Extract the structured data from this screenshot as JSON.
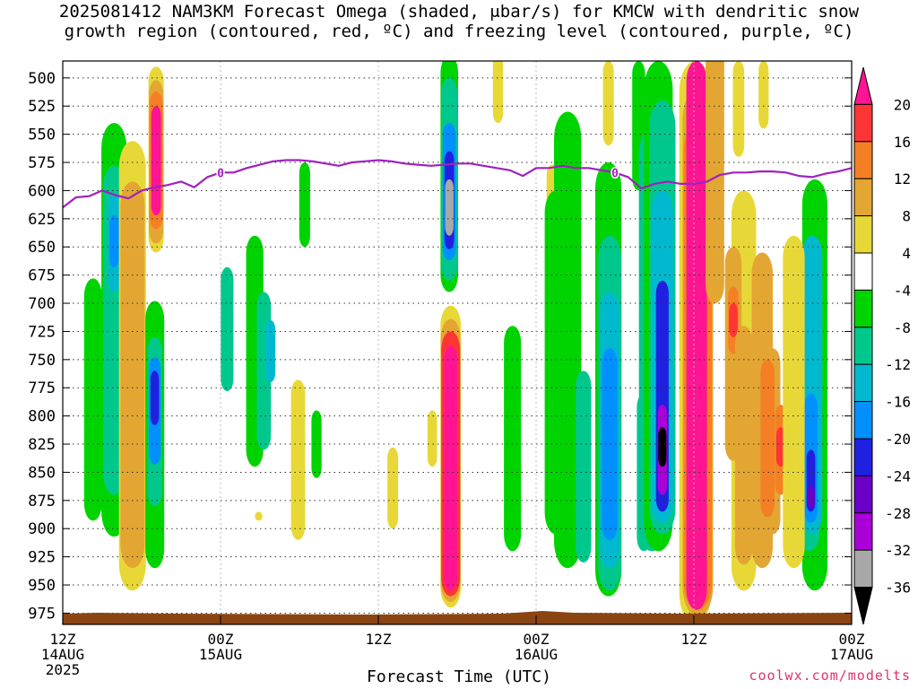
{
  "title_line1": "2025081412 NAM3KM Forecast Omega (shaded, μbar/s) for KMCW with dendritic snow",
  "title_line2": "growth region (contoured, red, ºC) and freezing level (contoured, purple, ºC)",
  "credit": "coolwx.com/modelts",
  "chart_data": {
    "type": "heatmap",
    "xlabel": "Forecast Time (UTC)",
    "ylabel": "",
    "x_ticks": [
      {
        "hour": 0,
        "l1": "12Z",
        "l2": "14AUG",
        "l3": "2025"
      },
      {
        "hour": 12,
        "l1": "00Z",
        "l2": "15AUG",
        "l3": ""
      },
      {
        "hour": 24,
        "l1": "12Z",
        "l2": "",
        "l3": ""
      },
      {
        "hour": 36,
        "l1": "00Z",
        "l2": "16AUG",
        "l3": ""
      },
      {
        "hour": 48,
        "l1": "12Z",
        "l2": "",
        "l3": ""
      },
      {
        "hour": 60,
        "l1": "00Z",
        "l2": "17AUG",
        "l3": ""
      }
    ],
    "xlim": [
      0,
      60
    ],
    "y_ticks": [
      500,
      525,
      550,
      575,
      600,
      625,
      650,
      675,
      700,
      725,
      750,
      775,
      800,
      825,
      850,
      875,
      900,
      925,
      950,
      975
    ],
    "ylim_hpa": [
      485,
      985
    ],
    "grid": true,
    "colorbar": {
      "labels": [
        "20",
        "16",
        "12",
        "8",
        "4",
        "-4",
        "-8",
        "-12",
        "-16",
        "-20",
        "-24",
        "-28",
        "-32",
        "-36"
      ],
      "bins": [
        {
          "range": ">20",
          "color": "#ff1493"
        },
        {
          "range": "16 to 20",
          "color": "#ff3535"
        },
        {
          "range": "12 to 16",
          "color": "#f57f24"
        },
        {
          "range": "8 to 12",
          "color": "#e3a632"
        },
        {
          "range": "4 to 8",
          "color": "#e8d837"
        },
        {
          "range": "-4 to 4",
          "color": "#ffffff"
        },
        {
          "range": "-8 to -4",
          "color": "#00d400"
        },
        {
          "range": "-12 to -8",
          "color": "#00c88c"
        },
        {
          "range": "-16 to -12",
          "color": "#00b9cf"
        },
        {
          "range": "-20 to -16",
          "color": "#0090ff"
        },
        {
          "range": "-24 to -20",
          "color": "#2020e0"
        },
        {
          "range": "-28 to -24",
          "color": "#6a00c8"
        },
        {
          "range": "-32 to -28",
          "color": "#aa00d8"
        },
        {
          "range": "-36 to -32",
          "color": "#a8a8a8"
        },
        {
          "range": "<-36",
          "color": "#000000"
        }
      ]
    },
    "freezing_level": {
      "label": "0",
      "color": "#a020c0",
      "hours": [
        0,
        1,
        2,
        3,
        4,
        5,
        6,
        7,
        8,
        9,
        10,
        11,
        12,
        13,
        14,
        15,
        16,
        17,
        18,
        19,
        20,
        21,
        22,
        23,
        24,
        25,
        26,
        27,
        28,
        29,
        30,
        31,
        32,
        33,
        34,
        35,
        36,
        37,
        38,
        39,
        40,
        41,
        42,
        43,
        44,
        45,
        46,
        47,
        48,
        49,
        50,
        51,
        52,
        53,
        54,
        55,
        56,
        57,
        58,
        59,
        60
      ],
      "hpa": [
        615,
        606,
        605,
        600,
        604,
        607,
        600,
        597,
        595,
        592,
        597,
        588,
        584,
        584,
        580,
        577,
        574,
        573,
        573,
        574,
        576,
        578,
        575,
        574,
        573,
        574,
        576,
        577,
        578,
        577,
        576,
        576,
        578,
        580,
        582,
        587,
        580,
        580,
        578,
        580,
        580,
        582,
        584,
        588,
        598,
        594,
        592,
        594,
        594,
        592,
        586,
        584,
        584,
        583,
        583,
        584,
        587,
        588,
        585,
        583,
        580
      ]
    },
    "omega_cells": [
      {
        "hour": 3.9,
        "top": 540,
        "bottom": 907,
        "level": -6
      },
      {
        "hour": 3.9,
        "top": 578,
        "bottom": 870,
        "level": -10
      },
      {
        "hour": 3.9,
        "top": 602,
        "bottom": 690,
        "level": -14
      },
      {
        "hour": 3.9,
        "top": 622,
        "bottom": 668,
        "level": -18
      },
      {
        "hour": 2.3,
        "top": 678,
        "bottom": 893,
        "level": -6
      },
      {
        "hour": 5.3,
        "top": 556,
        "bottom": 955,
        "level": 6
      },
      {
        "hour": 5.3,
        "top": 592,
        "bottom": 935,
        "level": 10
      },
      {
        "hour": 7.1,
        "top": 490,
        "bottom": 655,
        "level": 6
      },
      {
        "hour": 7.1,
        "top": 502,
        "bottom": 647,
        "level": 10
      },
      {
        "hour": 7.1,
        "top": 512,
        "bottom": 634,
        "level": 14
      },
      {
        "hour": 7.1,
        "top": 525,
        "bottom": 622,
        "level": 22
      },
      {
        "hour": 7.0,
        "top": 698,
        "bottom": 935,
        "level": -6
      },
      {
        "hour": 7.0,
        "top": 730,
        "bottom": 880,
        "level": -10
      },
      {
        "hour": 7.0,
        "top": 748,
        "bottom": 843,
        "level": -16
      },
      {
        "hour": 7.0,
        "top": 760,
        "bottom": 808,
        "level": -20
      },
      {
        "hour": 14.6,
        "top": 640,
        "bottom": 845,
        "level": -6
      },
      {
        "hour": 15.3,
        "top": 690,
        "bottom": 830,
        "level": -10
      },
      {
        "hour": 15.8,
        "top": 715,
        "bottom": 770,
        "level": -14
      },
      {
        "hour": 12.5,
        "top": 668,
        "bottom": 778,
        "level": -8
      },
      {
        "hour": 18.4,
        "top": 575,
        "bottom": 650,
        "level": -6
      },
      {
        "hour": 19.3,
        "top": 795,
        "bottom": 855,
        "level": -6
      },
      {
        "hour": 17.9,
        "top": 768,
        "bottom": 910,
        "level": 6
      },
      {
        "hour": 14.9,
        "top": 885,
        "bottom": 893,
        "level": 6
      },
      {
        "hour": 25.1,
        "top": 828,
        "bottom": 900,
        "level": 6
      },
      {
        "hour": 29.4,
        "top": 480,
        "bottom": 690,
        "level": -6
      },
      {
        "hour": 29.4,
        "top": 500,
        "bottom": 680,
        "level": -10
      },
      {
        "hour": 29.4,
        "top": 540,
        "bottom": 662,
        "level": -16
      },
      {
        "hour": 29.4,
        "top": 565,
        "bottom": 652,
        "level": -22
      },
      {
        "hour": 29.4,
        "top": 590,
        "bottom": 640,
        "level": -32
      },
      {
        "hour": 28.1,
        "top": 795,
        "bottom": 845,
        "level": 6
      },
      {
        "hour": 29.5,
        "top": 702,
        "bottom": 970,
        "level": 6
      },
      {
        "hour": 29.5,
        "top": 714,
        "bottom": 965,
        "level": 10
      },
      {
        "hour": 29.5,
        "top": 725,
        "bottom": 960,
        "level": 16
      },
      {
        "hour": 29.5,
        "top": 738,
        "bottom": 955,
        "level": 22
      },
      {
        "hour": 33.1,
        "top": 480,
        "bottom": 540,
        "level": 6
      },
      {
        "hour": 37.2,
        "top": 577,
        "bottom": 645,
        "level": 6
      },
      {
        "hour": 34.2,
        "top": 720,
        "bottom": 920,
        "level": -6
      },
      {
        "hour": 38.4,
        "top": 530,
        "bottom": 935,
        "level": -6
      },
      {
        "hour": 37.5,
        "top": 600,
        "bottom": 905,
        "level": -6
      },
      {
        "hour": 39.6,
        "top": 760,
        "bottom": 930,
        "level": -8
      },
      {
        "hour": 41.5,
        "top": 575,
        "bottom": 960,
        "level": -6
      },
      {
        "hour": 41.6,
        "top": 640,
        "bottom": 955,
        "level": -10
      },
      {
        "hour": 41.6,
        "top": 690,
        "bottom": 935,
        "level": -14
      },
      {
        "hour": 41.6,
        "top": 740,
        "bottom": 910,
        "level": -18
      },
      {
        "hour": 44.2,
        "top": 780,
        "bottom": 920,
        "level": -10
      },
      {
        "hour": 44.2,
        "top": 810,
        "bottom": 880,
        "level": -14
      },
      {
        "hour": 43.8,
        "top": 485,
        "bottom": 600,
        "level": -6
      },
      {
        "hour": 41.5,
        "top": 485,
        "bottom": 560,
        "level": 6
      },
      {
        "hour": 44.8,
        "top": 545,
        "bottom": 920,
        "level": -8
      },
      {
        "hour": 45.3,
        "top": 485,
        "bottom": 920,
        "level": -6
      },
      {
        "hour": 45.6,
        "top": 520,
        "bottom": 905,
        "level": -10
      },
      {
        "hour": 45.6,
        "top": 600,
        "bottom": 895,
        "level": -14
      },
      {
        "hour": 45.6,
        "top": 680,
        "bottom": 885,
        "level": -20
      },
      {
        "hour": 45.6,
        "top": 790,
        "bottom": 870,
        "level": -28
      },
      {
        "hour": 45.6,
        "top": 810,
        "bottom": 845,
        "level": -38
      },
      {
        "hour": 48.1,
        "top": 485,
        "bottom": 985,
        "level": 6
      },
      {
        "hour": 48.3,
        "top": 510,
        "bottom": 978,
        "level": 10
      },
      {
        "hour": 48.3,
        "top": 540,
        "bottom": 972,
        "level": 14
      },
      {
        "hour": 48.3,
        "top": 560,
        "bottom": 970,
        "level": 22
      },
      {
        "hour": 48.2,
        "top": 485,
        "bottom": 972,
        "level": 22
      },
      {
        "hour": 49.7,
        "top": 485,
        "bottom": 550,
        "level": -6
      },
      {
        "hour": 49.8,
        "top": 485,
        "bottom": 532,
        "level": -10
      },
      {
        "hour": 49.8,
        "top": 485,
        "bottom": 525,
        "level": -16
      },
      {
        "hour": 49.8,
        "top": 485,
        "bottom": 518,
        "level": -24
      },
      {
        "hour": 49.6,
        "top": 485,
        "bottom": 528,
        "level": -38
      },
      {
        "hour": 51.4,
        "top": 485,
        "bottom": 570,
        "level": 6
      },
      {
        "hour": 53.3,
        "top": 485,
        "bottom": 545,
        "level": 6
      },
      {
        "hour": 51.8,
        "top": 600,
        "bottom": 955,
        "level": 6
      },
      {
        "hour": 53.2,
        "top": 655,
        "bottom": 935,
        "level": 8
      },
      {
        "hour": 54.0,
        "top": 740,
        "bottom": 905,
        "level": 10
      },
      {
        "hour": 51.0,
        "top": 650,
        "bottom": 840,
        "level": 10
      },
      {
        "hour": 51.0,
        "top": 685,
        "bottom": 745,
        "level": 14
      },
      {
        "hour": 51.0,
        "top": 700,
        "bottom": 730,
        "level": 18
      },
      {
        "hour": 51.8,
        "top": 720,
        "bottom": 932,
        "level": 10
      },
      {
        "hour": 53.6,
        "top": 750,
        "bottom": 890,
        "level": 12
      },
      {
        "hour": 54.6,
        "top": 790,
        "bottom": 870,
        "level": 14
      },
      {
        "hour": 54.6,
        "top": 810,
        "bottom": 845,
        "level": 18
      },
      {
        "hour": 49.6,
        "top": 470,
        "bottom": 700,
        "level": 10
      },
      {
        "hour": 57.2,
        "top": 590,
        "bottom": 955,
        "level": -6
      },
      {
        "hour": 56.8,
        "top": 650,
        "bottom": 920,
        "level": -8
      },
      {
        "hour": 57.0,
        "top": 640,
        "bottom": 905,
        "level": -12
      },
      {
        "hour": 56.9,
        "top": 780,
        "bottom": 895,
        "level": -16
      },
      {
        "hour": 56.9,
        "top": 830,
        "bottom": 885,
        "level": -20
      },
      {
        "hour": 56.9,
        "top": 862,
        "bottom": 882,
        "level": -24
      },
      {
        "hour": 55.6,
        "top": 640,
        "bottom": 935,
        "level": 6
      }
    ]
  }
}
